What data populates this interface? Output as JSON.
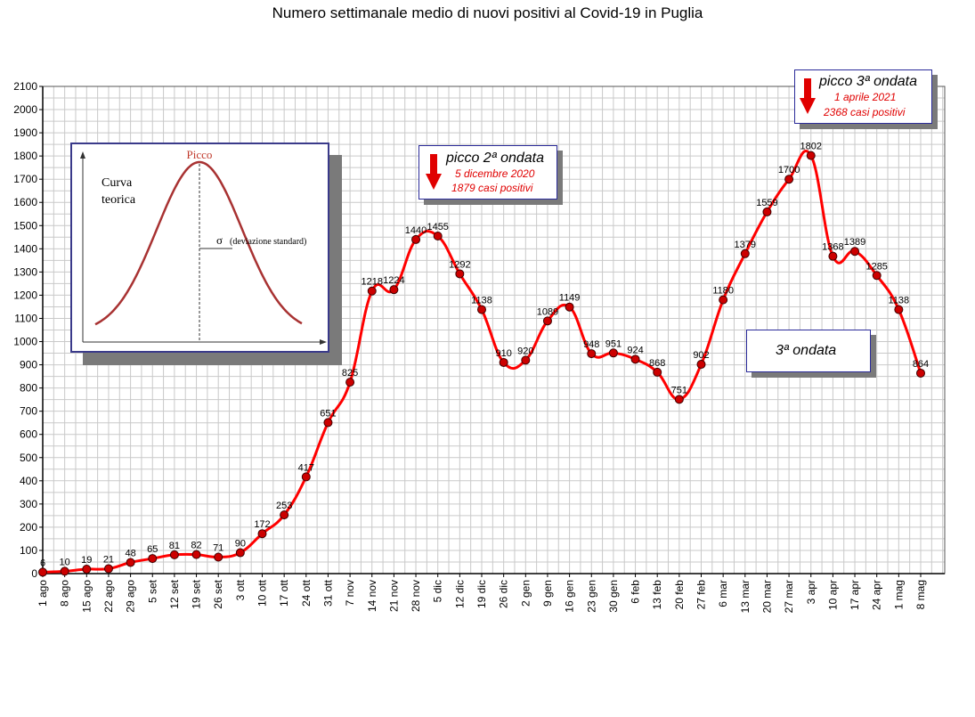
{
  "chart_data": {
    "type": "line",
    "title": "Numero settimanale medio di nuovi positivi al Covid-19 in Puglia",
    "categories": [
      "1 ago",
      "8 ago",
      "15 ago",
      "22 ago",
      "29 ago",
      "5 set",
      "12 set",
      "19 set",
      "26 set",
      "3 ott",
      "10 ott",
      "17 ott",
      "24 ott",
      "31 ott",
      "7 nov",
      "14 nov",
      "21 nov",
      "28 nov",
      "5 dic",
      "12 dic",
      "19 dic",
      "26 dic",
      "2 gen",
      "9 gen",
      "16 gen",
      "23 gen",
      "30 gen",
      "6 feb",
      "13 feb",
      "20 feb",
      "27 feb",
      "6 mar",
      "13 mar",
      "20 mar",
      "27 mar",
      "3 apr",
      "10 apr",
      "17 apr",
      "24 apr",
      "1 mag",
      "8 mag"
    ],
    "values": [
      6,
      10,
      19,
      21,
      48,
      65,
      81,
      82,
      71,
      90,
      172,
      253,
      417,
      651,
      825,
      1218,
      1224,
      1440,
      1455,
      1292,
      1138,
      910,
      920,
      1089,
      1149,
      948,
      951,
      924,
      868,
      751,
      902,
      1180,
      1379,
      1559,
      1700,
      1802,
      1368,
      1389,
      1285,
      1138,
      864
    ],
    "ylim": [
      0,
      2100
    ],
    "yticks": [
      0,
      100,
      200,
      300,
      400,
      500,
      600,
      700,
      800,
      900,
      1000,
      1100,
      1200,
      1300,
      1400,
      1500,
      1600,
      1700,
      1800,
      1900,
      2000,
      2100
    ],
    "grid": true,
    "line_color": "#ff0000",
    "marker_color": "#cc0000"
  },
  "annotations": {
    "peak2": {
      "title": "picco 2ª ondata",
      "line1": "5 dicembre 2020",
      "line2": "1879 casi positivi"
    },
    "peak3": {
      "title": "picco 3ª ondata",
      "line1": "1 aprile 2021",
      "line2": "2368 casi positivi"
    },
    "wave3": {
      "label": "3ª ondata"
    },
    "accent_color": "#e00000"
  },
  "inset": {
    "peak_label": "Picco",
    "curve_label_1": "Curva",
    "curve_label_2": "teorica",
    "sigma_label": "σ",
    "sigma_text": "(deviazione standard)"
  }
}
